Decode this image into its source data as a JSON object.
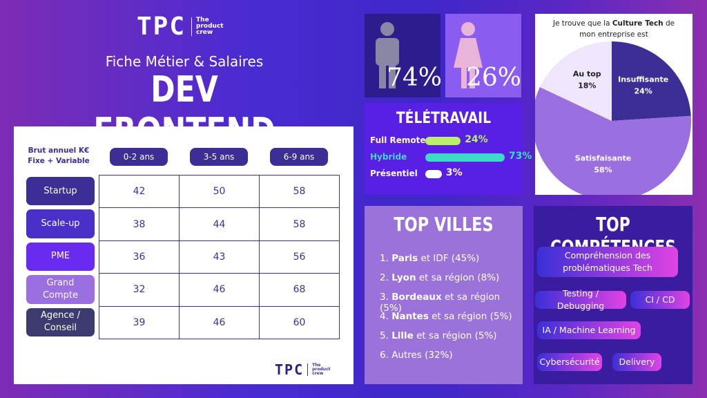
{
  "header": {
    "logo": "TPC",
    "logo_tagline": [
      "The",
      "product",
      "crew"
    ],
    "subtitle": "Fiche Métier & Salaires",
    "title": "DEV FRONTEND"
  },
  "salaries": {
    "caption": [
      "Brut annuel K€",
      "Fixe + Variable"
    ],
    "columns": [
      "0-2 ans",
      "3-5 ans",
      "6-9 ans"
    ],
    "rows": [
      {
        "label": "Startup",
        "values": [
          42,
          50,
          58
        ]
      },
      {
        "label": "Scale-up",
        "values": [
          38,
          44,
          58
        ]
      },
      {
        "label": "PME",
        "values": [
          36,
          43,
          56
        ]
      },
      {
        "label": "Grand Compte",
        "values": [
          32,
          46,
          68
        ]
      },
      {
        "label": "Agence / Conseil",
        "values": [
          39,
          46,
          60
        ]
      }
    ]
  },
  "table_logo": {
    "logo": "TPC",
    "tagline": [
      "The",
      "product",
      "crew"
    ]
  },
  "gender": {
    "male": "74%",
    "female": "26%"
  },
  "remote": {
    "title": "TÉLÉTRAVAIL",
    "items": [
      {
        "label": "Full Remote",
        "value": 24,
        "value_label": "24%",
        "color": "#b9f06b"
      },
      {
        "label": "Hybride",
        "value": 73,
        "value_label": "73%",
        "color": "#3fd9c8"
      },
      {
        "label": "Présentiel",
        "value": 3,
        "value_label": "3%",
        "color": "#ffffff"
      }
    ]
  },
  "culture": {
    "type": "pie",
    "title": [
      "Je trouve que la ",
      "Culture Tech",
      " de mon entreprise est"
    ],
    "slices": [
      {
        "name": "Insuffisante",
        "value": 24,
        "value_label": "24%",
        "color": "#3b2f96"
      },
      {
        "name": "Satisfaisante",
        "value": 58,
        "value_label": "58%",
        "color": "#9b6fe0"
      },
      {
        "name": "Au top",
        "value": 18,
        "value_label": "18%",
        "color": "#efe6fb"
      }
    ]
  },
  "cities": {
    "title": "TOP VILLES",
    "items": [
      {
        "rank": "1.",
        "city": "Paris",
        "detail": "et IDF (45%)"
      },
      {
        "rank": "2.",
        "city": "Lyon",
        "detail": "et sa région (8%)"
      },
      {
        "rank": "3.",
        "city": "Bordeaux",
        "detail": "et sa région (5%)"
      },
      {
        "rank": "4.",
        "city": "Nantes",
        "detail": "et sa région (5%)"
      },
      {
        "rank": "5.",
        "city": "Lille",
        "detail": "et sa région (5%)"
      },
      {
        "rank": "6.",
        "detail": "Autres (32%)"
      }
    ]
  },
  "skills": {
    "title": "TOP COMPÉTENCES",
    "items": [
      "Compréhension des problématiques Tech",
      "Testing / Debugging",
      "CI / CD",
      "IA / Machine Learning",
      "Cybersécurité",
      "Delivery"
    ]
  }
}
